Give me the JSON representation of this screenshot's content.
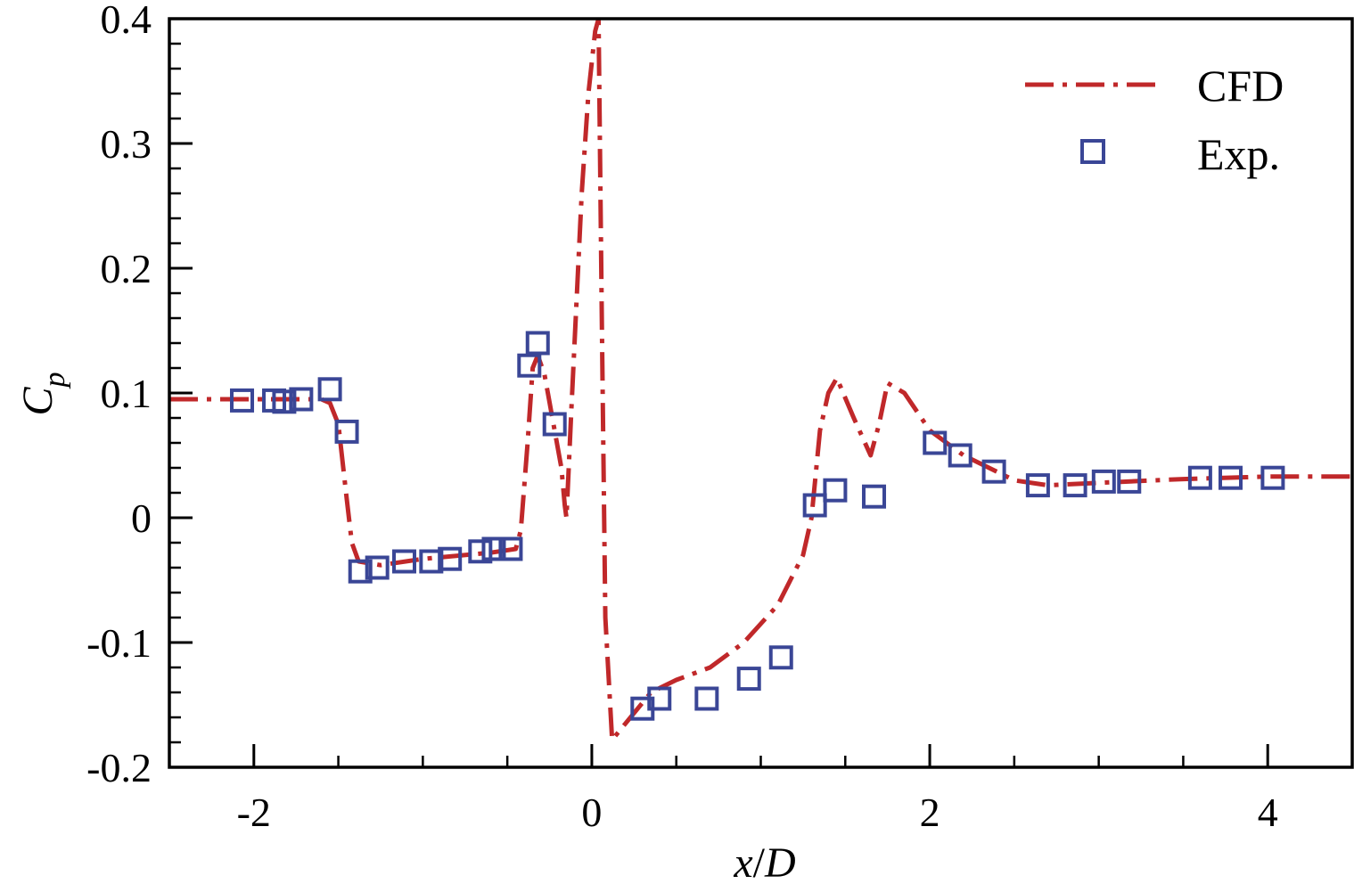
{
  "chart_data": {
    "type": "line",
    "title": "",
    "xlabel": "x/D",
    "ylabel": "C_p",
    "xlabel_parts": [
      "x",
      "/",
      "D"
    ],
    "ylabel_parts": [
      "C",
      "p"
    ],
    "xlim": [
      -2.5,
      4.5
    ],
    "ylim": [
      -0.2,
      0.4
    ],
    "x_ticks": [
      -2,
      0,
      2,
      4
    ],
    "x_tick_labels": [
      "-2",
      "0",
      "2",
      "4"
    ],
    "x_minor_step": 0.5,
    "y_ticks": [
      -0.2,
      -0.1,
      0,
      0.1,
      0.2,
      0.3,
      0.4
    ],
    "y_tick_labels": [
      "-0.2",
      "-0.1",
      "0",
      "0.1",
      "0.2",
      "0.3",
      "0.4"
    ],
    "y_minor_step": 0.02,
    "grid": false,
    "legend_position": "top-right",
    "series": [
      {
        "name": "CFD",
        "style": "dash-dot line",
        "color": "#c0282a",
        "x": [
          -2.5,
          -1.75,
          -1.6,
          -1.55,
          -1.5,
          -1.45,
          -1.42,
          -1.38,
          -1.25,
          -1.0,
          -0.6,
          -0.45,
          -0.42,
          -0.38,
          -0.35,
          -0.32,
          -0.28,
          -0.22,
          -0.18,
          -0.16,
          -0.15,
          -0.12,
          -0.06,
          -0.02,
          0.02,
          0.04,
          0.06,
          0.08,
          0.12,
          0.35,
          0.5,
          0.7,
          0.9,
          1.1,
          1.25,
          1.3,
          1.35,
          1.4,
          1.45,
          1.55,
          1.65,
          1.7,
          1.75,
          1.85,
          2.0,
          2.2,
          2.5,
          2.7,
          3.0,
          3.5,
          4.0,
          4.5
        ],
        "y": [
          0.095,
          0.095,
          0.095,
          0.092,
          0.075,
          0.015,
          -0.02,
          -0.035,
          -0.038,
          -0.033,
          -0.028,
          -0.025,
          -0.01,
          0.06,
          0.12,
          0.13,
          0.115,
          0.07,
          0.04,
          0.01,
          0.0,
          0.09,
          0.26,
          0.34,
          0.39,
          0.4,
          0.15,
          -0.08,
          -0.178,
          -0.14,
          -0.13,
          -0.12,
          -0.1,
          -0.07,
          -0.03,
          0.0,
          0.07,
          0.1,
          0.112,
          0.08,
          0.05,
          0.075,
          0.108,
          0.1,
          0.07,
          0.05,
          0.03,
          0.026,
          0.028,
          0.031,
          0.033,
          0.033
        ]
      },
      {
        "name": "Exp.",
        "style": "open squares",
        "color": "#3a4696",
        "x": [
          -2.07,
          -1.88,
          -1.82,
          -1.72,
          -1.55,
          -1.45,
          -1.37,
          -1.27,
          -1.11,
          -0.95,
          -0.84,
          -0.66,
          -0.58,
          -0.48,
          -0.37,
          -0.32,
          -0.22,
          0.3,
          0.4,
          0.68,
          0.93,
          1.12,
          1.32,
          1.44,
          1.67,
          2.03,
          2.18,
          2.38,
          2.64,
          2.86,
          3.03,
          3.18,
          3.6,
          3.78,
          4.03
        ],
        "y": [
          0.094,
          0.094,
          0.093,
          0.095,
          0.103,
          0.069,
          -0.043,
          -0.04,
          -0.035,
          -0.035,
          -0.033,
          -0.027,
          -0.025,
          -0.025,
          0.122,
          0.14,
          0.075,
          -0.153,
          -0.145,
          -0.145,
          -0.129,
          -0.112,
          0.01,
          0.022,
          0.017,
          0.06,
          0.05,
          0.037,
          0.026,
          0.026,
          0.029,
          0.029,
          0.032,
          0.032,
          0.032
        ]
      }
    ]
  }
}
